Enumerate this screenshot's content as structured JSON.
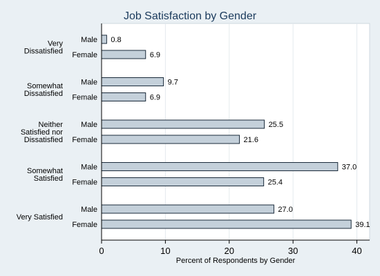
{
  "chart_data": {
    "type": "bar",
    "orientation": "horizontal",
    "title": "Job Satisfaction by Gender",
    "xlabel": "Percent of Respondents by Gender",
    "xlim": [
      0,
      42
    ],
    "xticks": [
      0,
      10,
      20,
      30,
      40
    ],
    "grid": true,
    "colors": {
      "bar_fill": "#c4d0da",
      "bar_stroke": "#1a2a3a",
      "plot_bg": "#ffffff",
      "page_bg": "#eaf0f4",
      "title": "#1a3a5c"
    },
    "groups": [
      {
        "label": "Very Dissatisfied",
        "label_lines": [
          "Very",
          "Dissatisfied"
        ],
        "bars": [
          {
            "name": "Male",
            "value": 0.8,
            "label": "0.8"
          },
          {
            "name": "Female",
            "value": 6.9,
            "label": "6.9"
          }
        ]
      },
      {
        "label": "Somewhat Dissatisfied",
        "label_lines": [
          "Somewhat",
          "Dissatisfied"
        ],
        "bars": [
          {
            "name": "Male",
            "value": 9.7,
            "label": "9.7"
          },
          {
            "name": "Female",
            "value": 6.9,
            "label": "6.9"
          }
        ]
      },
      {
        "label": "Neither Satisfied nor Dissatisfied",
        "label_lines": [
          "Neither",
          "Satisfied nor",
          "Dissatisfied"
        ],
        "bars": [
          {
            "name": "Male",
            "value": 25.5,
            "label": "25.5"
          },
          {
            "name": "Female",
            "value": 21.6,
            "label": "21.6"
          }
        ]
      },
      {
        "label": "Somewhat Satisfied",
        "label_lines": [
          "Somewhat",
          "Satisfied"
        ],
        "bars": [
          {
            "name": "Male",
            "value": 37.0,
            "label": "37.0"
          },
          {
            "name": "Female",
            "value": 25.4,
            "label": "25.4"
          }
        ]
      },
      {
        "label": "Very Satisfied",
        "label_lines": [
          "Very Satisfied"
        ],
        "bars": [
          {
            "name": "Male",
            "value": 27.0,
            "label": "27.0"
          },
          {
            "name": "Female",
            "value": 39.1,
            "label": "39.1"
          }
        ]
      }
    ]
  }
}
